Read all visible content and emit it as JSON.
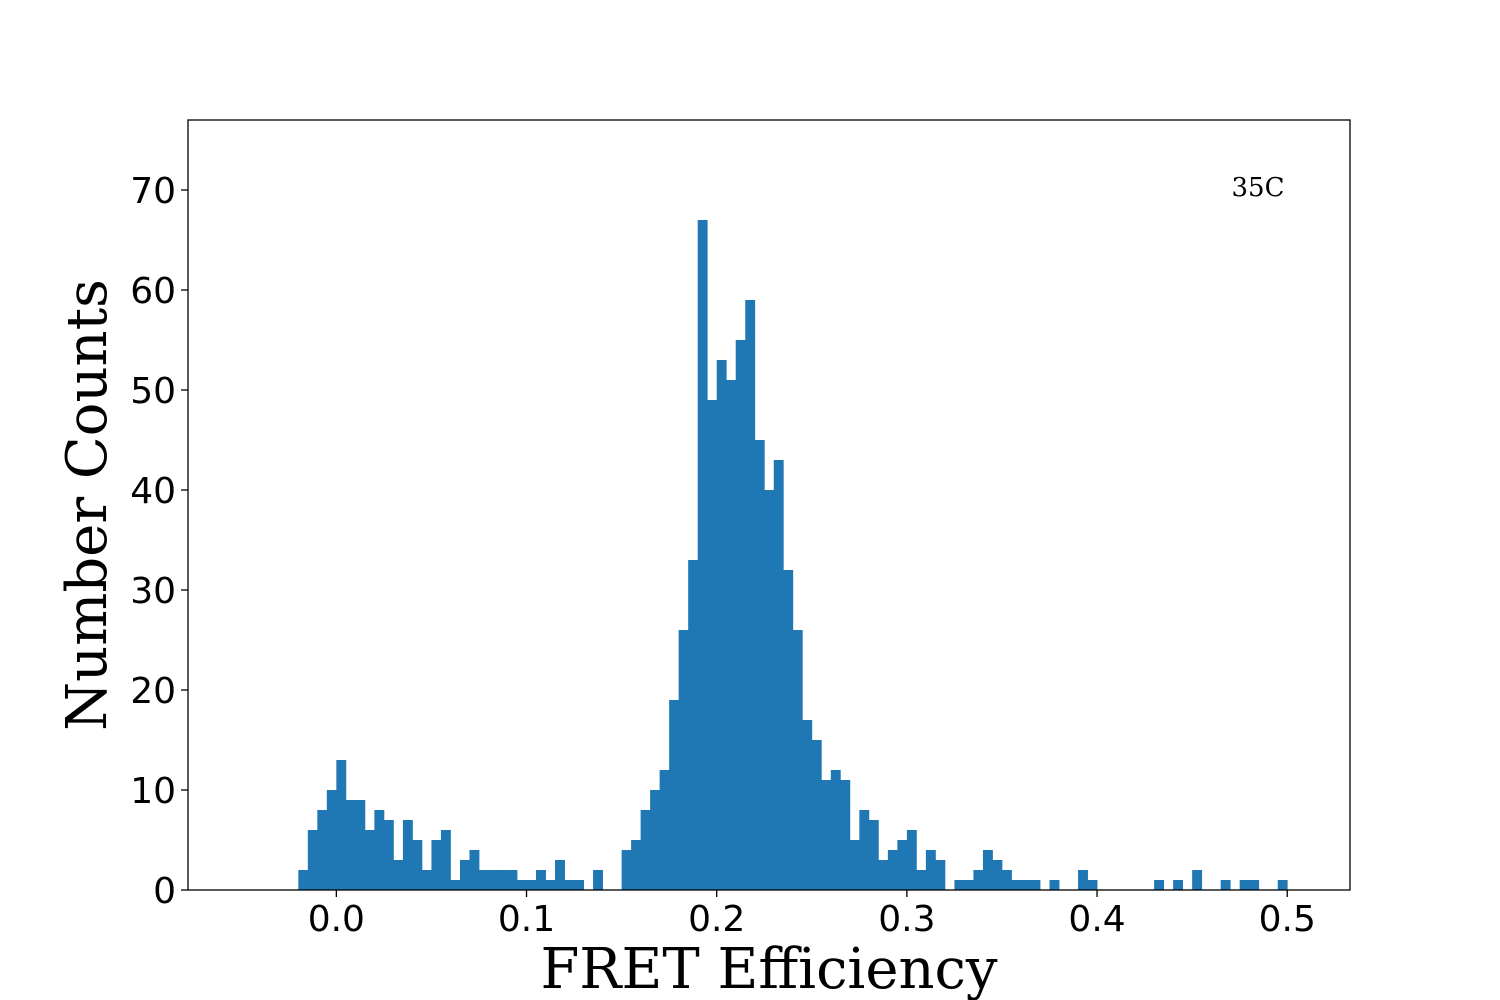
{
  "chart_data": {
    "type": "bar",
    "title": "",
    "xlabel": "FRET Efficiency",
    "ylabel": "Number Counts",
    "annotation": "35C",
    "xlim": [
      -0.078,
      0.533
    ],
    "ylim": [
      0,
      77
    ],
    "x_ticks": [
      "0.0",
      "0.1",
      "0.2",
      "0.3",
      "0.4",
      "0.5"
    ],
    "y_ticks": [
      "0",
      "10",
      "20",
      "30",
      "40",
      "50",
      "60",
      "70"
    ],
    "bar_color": "#1f77b4",
    "grid": false,
    "bin_width": 0.005,
    "bins": [
      {
        "x": -0.02,
        "count": 2
      },
      {
        "x": -0.015,
        "count": 6
      },
      {
        "x": -0.01,
        "count": 8
      },
      {
        "x": -0.005,
        "count": 10
      },
      {
        "x": 0.0,
        "count": 13
      },
      {
        "x": 0.005,
        "count": 9
      },
      {
        "x": 0.01,
        "count": 9
      },
      {
        "x": 0.015,
        "count": 6
      },
      {
        "x": 0.02,
        "count": 8
      },
      {
        "x": 0.025,
        "count": 7
      },
      {
        "x": 0.03,
        "count": 3
      },
      {
        "x": 0.035,
        "count": 7
      },
      {
        "x": 0.04,
        "count": 5
      },
      {
        "x": 0.045,
        "count": 2
      },
      {
        "x": 0.05,
        "count": 5
      },
      {
        "x": 0.055,
        "count": 6
      },
      {
        "x": 0.06,
        "count": 1
      },
      {
        "x": 0.065,
        "count": 3
      },
      {
        "x": 0.07,
        "count": 4
      },
      {
        "x": 0.075,
        "count": 2
      },
      {
        "x": 0.08,
        "count": 2
      },
      {
        "x": 0.085,
        "count": 2
      },
      {
        "x": 0.09,
        "count": 2
      },
      {
        "x": 0.095,
        "count": 1
      },
      {
        "x": 0.1,
        "count": 1
      },
      {
        "x": 0.105,
        "count": 2
      },
      {
        "x": 0.11,
        "count": 1
      },
      {
        "x": 0.115,
        "count": 3
      },
      {
        "x": 0.12,
        "count": 1
      },
      {
        "x": 0.125,
        "count": 1
      },
      {
        "x": 0.135,
        "count": 2
      },
      {
        "x": 0.15,
        "count": 4
      },
      {
        "x": 0.155,
        "count": 5
      },
      {
        "x": 0.16,
        "count": 8
      },
      {
        "x": 0.165,
        "count": 10
      },
      {
        "x": 0.17,
        "count": 12
      },
      {
        "x": 0.175,
        "count": 19
      },
      {
        "x": 0.18,
        "count": 26
      },
      {
        "x": 0.185,
        "count": 33
      },
      {
        "x": 0.19,
        "count": 67
      },
      {
        "x": 0.195,
        "count": 49
      },
      {
        "x": 0.2,
        "count": 53
      },
      {
        "x": 0.205,
        "count": 51
      },
      {
        "x": 0.21,
        "count": 55
      },
      {
        "x": 0.215,
        "count": 59
      },
      {
        "x": 0.22,
        "count": 45
      },
      {
        "x": 0.225,
        "count": 40
      },
      {
        "x": 0.23,
        "count": 43
      },
      {
        "x": 0.235,
        "count": 32
      },
      {
        "x": 0.24,
        "count": 26
      },
      {
        "x": 0.245,
        "count": 17
      },
      {
        "x": 0.25,
        "count": 15
      },
      {
        "x": 0.255,
        "count": 11
      },
      {
        "x": 0.26,
        "count": 12
      },
      {
        "x": 0.265,
        "count": 11
      },
      {
        "x": 0.27,
        "count": 5
      },
      {
        "x": 0.275,
        "count": 8
      },
      {
        "x": 0.28,
        "count": 7
      },
      {
        "x": 0.285,
        "count": 3
      },
      {
        "x": 0.29,
        "count": 4
      },
      {
        "x": 0.295,
        "count": 5
      },
      {
        "x": 0.3,
        "count": 6
      },
      {
        "x": 0.305,
        "count": 2
      },
      {
        "x": 0.31,
        "count": 4
      },
      {
        "x": 0.315,
        "count": 3
      },
      {
        "x": 0.325,
        "count": 1
      },
      {
        "x": 0.33,
        "count": 1
      },
      {
        "x": 0.335,
        "count": 2
      },
      {
        "x": 0.34,
        "count": 4
      },
      {
        "x": 0.345,
        "count": 3
      },
      {
        "x": 0.35,
        "count": 2
      },
      {
        "x": 0.355,
        "count": 1
      },
      {
        "x": 0.36,
        "count": 1
      },
      {
        "x": 0.365,
        "count": 1
      },
      {
        "x": 0.375,
        "count": 1
      },
      {
        "x": 0.39,
        "count": 2
      },
      {
        "x": 0.395,
        "count": 1
      },
      {
        "x": 0.43,
        "count": 1
      },
      {
        "x": 0.44,
        "count": 1
      },
      {
        "x": 0.45,
        "count": 2
      },
      {
        "x": 0.465,
        "count": 1
      },
      {
        "x": 0.475,
        "count": 1
      },
      {
        "x": 0.48,
        "count": 1
      },
      {
        "x": 0.495,
        "count": 1
      }
    ]
  }
}
